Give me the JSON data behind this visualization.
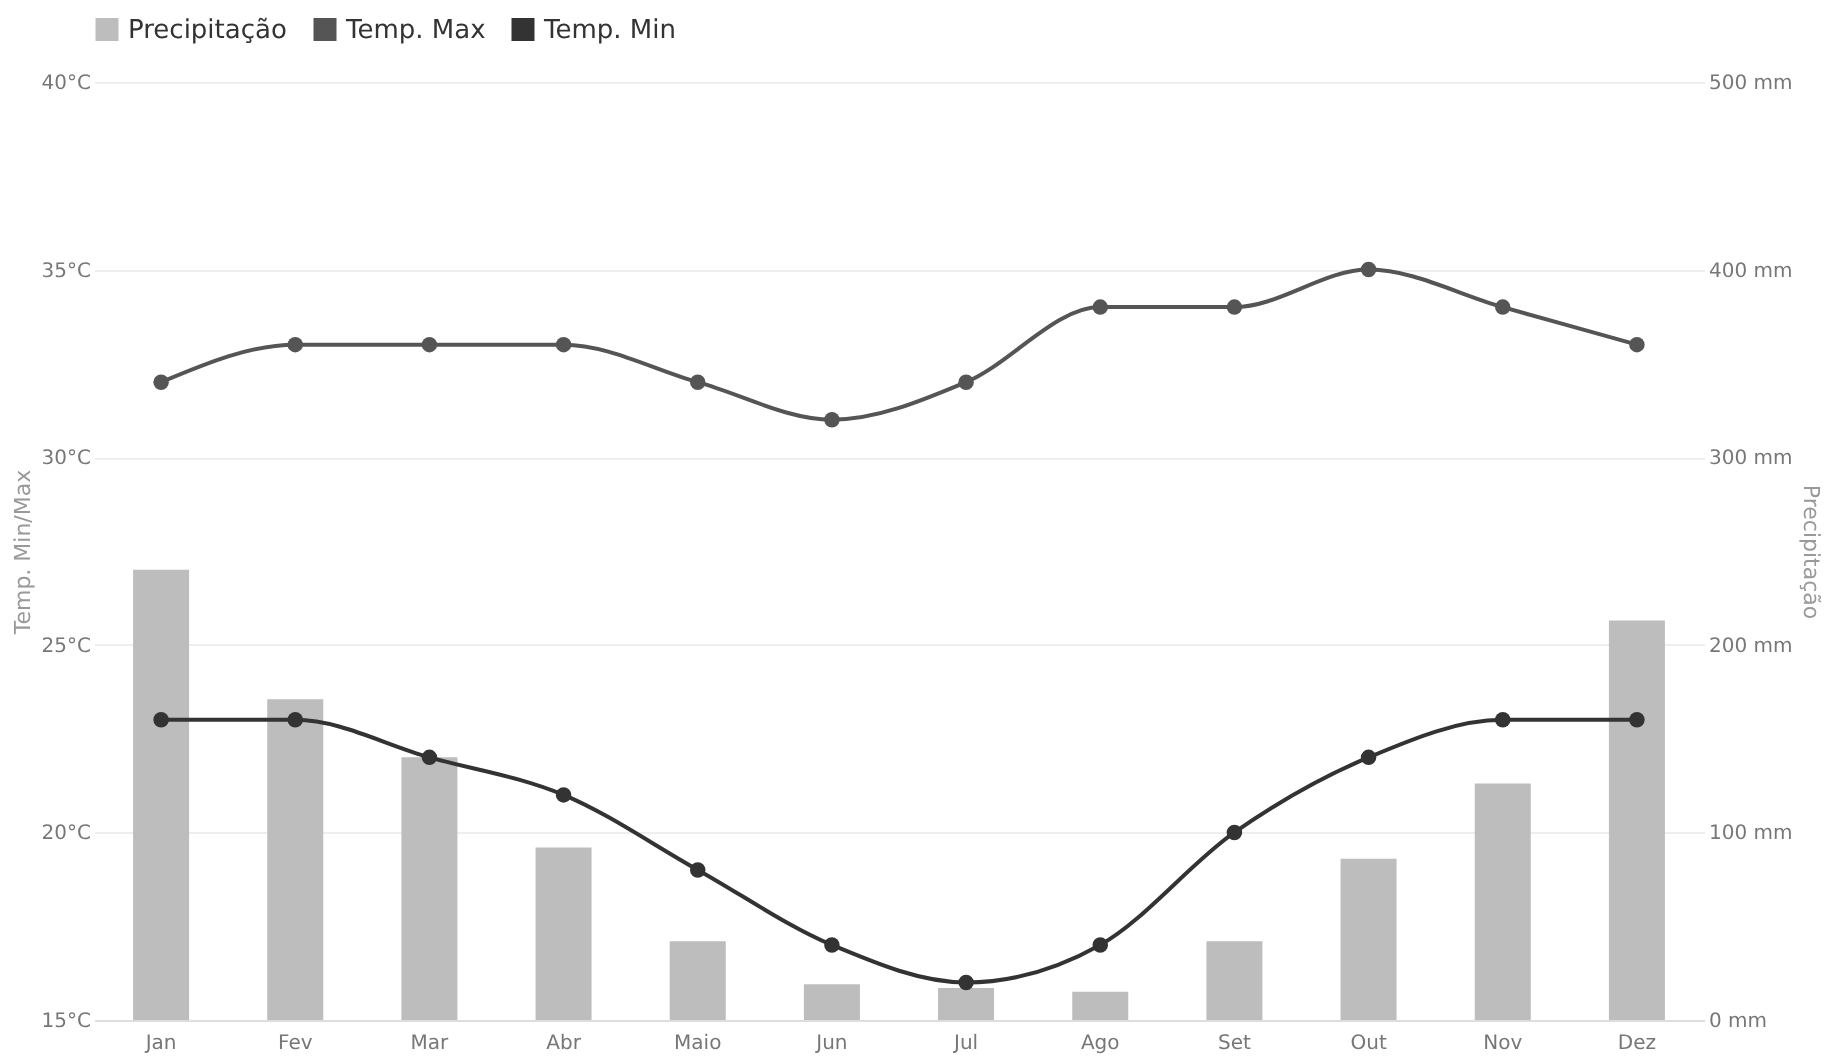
{
  "chart_data": {
    "type": "bar",
    "categories": [
      "Jan",
      "Fev",
      "Mar",
      "Abr",
      "Maio",
      "Jun",
      "Jul",
      "Ago",
      "Set",
      "Out",
      "Nov",
      "Dez"
    ],
    "series": [
      {
        "name": "Precipitação",
        "axis": "y2",
        "color": "#bdbdbd",
        "values": [
          240,
          171,
          140,
          92,
          42,
          19,
          17,
          15,
          42,
          86,
          126,
          213
        ]
      },
      {
        "name": "Temp. Max",
        "type": "line",
        "color": "#555555",
        "values": [
          32,
          33,
          33,
          33,
          32,
          31,
          32,
          34,
          34,
          35,
          34,
          33
        ]
      },
      {
        "name": "Temp. Min",
        "type": "line",
        "color": "#333333",
        "values": [
          23,
          23,
          22,
          21,
          19,
          17,
          16,
          17,
          20,
          22,
          23,
          23
        ]
      }
    ],
    "ylabel": "Temp. Min/Max",
    "y2label": "Precipitação",
    "ylim": [
      15,
      40
    ],
    "yticks": [
      {
        "value": 15,
        "label": "15°C"
      },
      {
        "value": 20,
        "label": "20°C"
      },
      {
        "value": 25,
        "label": "25°C"
      },
      {
        "value": 30,
        "label": "30°C"
      },
      {
        "value": 35,
        "label": "35°C"
      },
      {
        "value": 40,
        "label": "40°C"
      }
    ],
    "y2lim": [
      0,
      500
    ],
    "y2ticks": [
      {
        "value": 0,
        "label": "0 mm"
      },
      {
        "value": 100,
        "label": "100 mm"
      },
      {
        "value": 200,
        "label": "200 mm"
      },
      {
        "value": 300,
        "label": "300 mm"
      },
      {
        "value": 400,
        "label": "400 mm"
      },
      {
        "value": 500,
        "label": "500 mm"
      }
    ],
    "grid": "y",
    "legend": "top",
    "marker": "circle",
    "line_style": "solid"
  }
}
